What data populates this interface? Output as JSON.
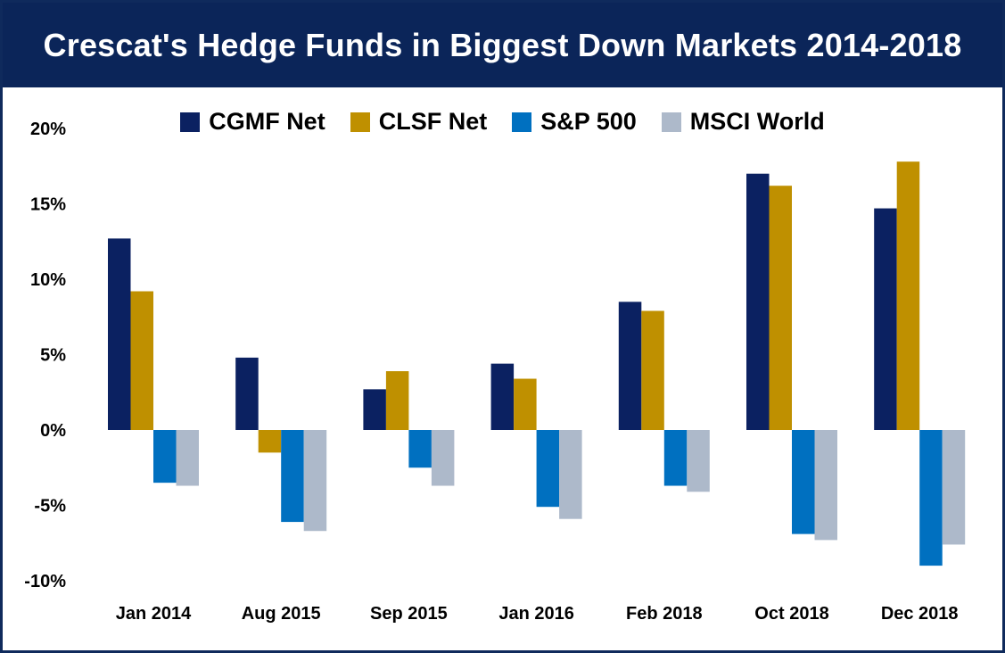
{
  "title": "Crescat's Hedge Funds in Biggest Down Markets 2014-2018",
  "chart_data": {
    "type": "bar",
    "title": "Crescat's Hedge Funds in Biggest Down Markets 2014-2018",
    "xlabel": "",
    "ylabel": "",
    "categories": [
      "Jan 2014",
      "Aug 2015",
      "Sep 2015",
      "Jan 2016",
      "Feb 2018",
      "Oct 2018",
      "Dec 2018"
    ],
    "series": [
      {
        "name": "CGMF Net",
        "color": "#0b2161",
        "values": [
          12.7,
          4.8,
          2.7,
          4.4,
          8.5,
          17.0,
          14.7
        ]
      },
      {
        "name": "CLSF Net",
        "color": "#bf9000",
        "values": [
          9.2,
          -1.5,
          3.9,
          3.4,
          7.9,
          16.2,
          17.8
        ]
      },
      {
        "name": "S&P 500",
        "color": "#0070c0",
        "values": [
          -3.5,
          -6.1,
          -2.5,
          -5.1,
          -3.7,
          -6.9,
          -9.0
        ]
      },
      {
        "name": "MSCI World",
        "color": "#adb9ca",
        "values": [
          -3.7,
          -6.7,
          -3.7,
          -5.9,
          -4.1,
          -7.3,
          -7.6
        ]
      }
    ],
    "yticks": [
      "20%",
      "15%",
      "10%",
      "5%",
      "0%",
      "-5%",
      "-10%"
    ],
    "ylim": [
      -10,
      20
    ],
    "legend": "top",
    "grid": false
  }
}
